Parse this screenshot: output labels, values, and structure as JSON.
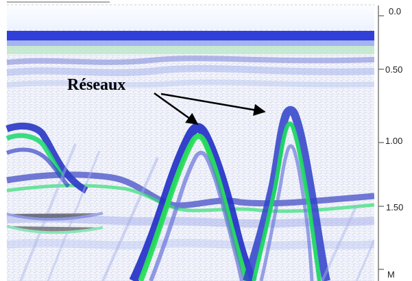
{
  "annotation": {
    "label": "Réseaux"
  },
  "depth_axis": {
    "tick_labels": [
      "0.0",
      "0.50",
      "1.00",
      "1.50"
    ],
    "unit": "M"
  },
  "colors": {
    "dark_band": "#2c2fd6",
    "blue": "#3c4bc7",
    "green": "#21d46a",
    "background": "#f3f4f8"
  }
}
